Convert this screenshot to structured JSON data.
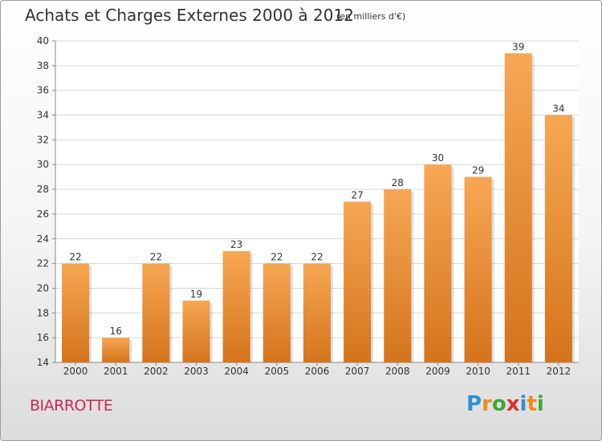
{
  "header": {
    "title": "Achats et Charges Externes 2000 à 2012",
    "subtitle": "(en milliers d'€)"
  },
  "commune": "BIARROTTE",
  "logo": {
    "text": "Proxiti",
    "letters": [
      {
        "ch": "P",
        "color": "#2f8fd4"
      },
      {
        "ch": "r",
        "color": "#f08a1c"
      },
      {
        "ch": "o",
        "color": "#3da63a"
      },
      {
        "ch": "x",
        "color": "#d93030"
      },
      {
        "ch": "i",
        "color": "#2f8fd4"
      },
      {
        "ch": "t",
        "color": "#f08a1c"
      },
      {
        "ch": "i",
        "color": "#3da63a"
      }
    ]
  },
  "colors": {
    "bar_top": "#f7a753",
    "bar_bottom": "#d4741c",
    "grid": "#d6d6d6",
    "axis": "#888888"
  },
  "chart_data": {
    "type": "bar",
    "categories": [
      "2000",
      "2001",
      "2002",
      "2003",
      "2004",
      "2005",
      "2006",
      "2007",
      "2008",
      "2009",
      "2010",
      "2011",
      "2012"
    ],
    "values": [
      22,
      16,
      22,
      19,
      23,
      22,
      22,
      27,
      28,
      30,
      29,
      39,
      34
    ],
    "ylim": [
      14,
      40
    ],
    "yticks": [
      14,
      16,
      18,
      20,
      22,
      24,
      26,
      28,
      30,
      32,
      34,
      36,
      38,
      40
    ],
    "grid": true,
    "xlabel": "",
    "ylabel": ""
  }
}
